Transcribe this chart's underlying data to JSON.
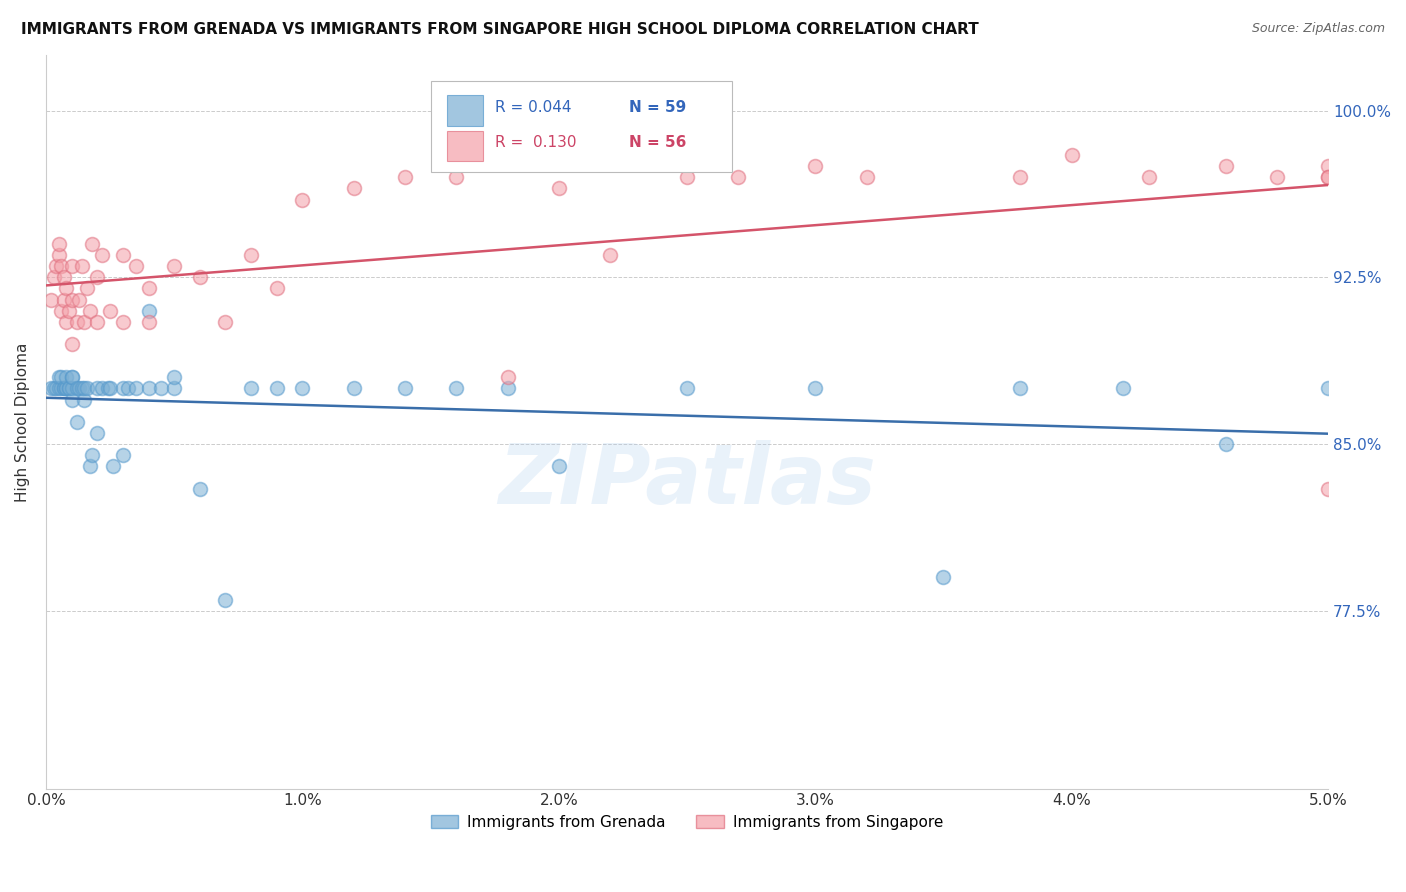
{
  "title": "IMMIGRANTS FROM GRENADA VS IMMIGRANTS FROM SINGAPORE HIGH SCHOOL DIPLOMA CORRELATION CHART",
  "source": "Source: ZipAtlas.com",
  "ylabel": "High School Diploma",
  "ytick_labels": [
    "100.0%",
    "92.5%",
    "85.0%",
    "77.5%"
  ],
  "ytick_values": [
    1.0,
    0.925,
    0.85,
    0.775
  ],
  "xlim": [
    0.0,
    0.05
  ],
  "ylim": [
    0.695,
    1.025
  ],
  "legend_blue_R": "R = 0.044",
  "legend_blue_N": "N = 59",
  "legend_pink_R": "R =  0.130",
  "legend_pink_N": "N = 56",
  "blue_color": "#7BAFD4",
  "pink_color": "#F4A0A8",
  "blue_line_color": "#3A6EAA",
  "pink_line_color": "#D4546A",
  "blue_edge_color": "#5599CC",
  "pink_edge_color": "#E07080",
  "watermark": "ZIPatlas",
  "blue_points_x": [
    0.0002,
    0.0003,
    0.0004,
    0.0005,
    0.0005,
    0.0006,
    0.0006,
    0.0007,
    0.0007,
    0.0008,
    0.0008,
    0.0008,
    0.0009,
    0.0009,
    0.001,
    0.001,
    0.001,
    0.001,
    0.0012,
    0.0012,
    0.0013,
    0.0014,
    0.0015,
    0.0015,
    0.0016,
    0.0017,
    0.0018,
    0.002,
    0.002,
    0.0022,
    0.0024,
    0.0025,
    0.0026,
    0.003,
    0.003,
    0.0032,
    0.0035,
    0.004,
    0.004,
    0.0045,
    0.005,
    0.005,
    0.006,
    0.007,
    0.008,
    0.009,
    0.01,
    0.012,
    0.014,
    0.016,
    0.018,
    0.02,
    0.025,
    0.03,
    0.035,
    0.038,
    0.042,
    0.046,
    0.05
  ],
  "blue_points_y": [
    0.875,
    0.875,
    0.875,
    0.875,
    0.88,
    0.875,
    0.88,
    0.875,
    0.875,
    0.875,
    0.875,
    0.88,
    0.875,
    0.875,
    0.87,
    0.875,
    0.88,
    0.88,
    0.86,
    0.875,
    0.875,
    0.875,
    0.87,
    0.875,
    0.875,
    0.84,
    0.845,
    0.855,
    0.875,
    0.875,
    0.875,
    0.875,
    0.84,
    0.845,
    0.875,
    0.875,
    0.875,
    0.91,
    0.875,
    0.875,
    0.875,
    0.88,
    0.83,
    0.78,
    0.875,
    0.875,
    0.875,
    0.875,
    0.875,
    0.875,
    0.875,
    0.84,
    0.875,
    0.875,
    0.79,
    0.875,
    0.875,
    0.85,
    0.875
  ],
  "pink_points_x": [
    0.0002,
    0.0003,
    0.0004,
    0.0005,
    0.0005,
    0.0006,
    0.0006,
    0.0007,
    0.0007,
    0.0008,
    0.0008,
    0.0009,
    0.001,
    0.001,
    0.001,
    0.0012,
    0.0013,
    0.0014,
    0.0015,
    0.0016,
    0.0017,
    0.0018,
    0.002,
    0.002,
    0.0022,
    0.0025,
    0.003,
    0.003,
    0.0035,
    0.004,
    0.004,
    0.005,
    0.006,
    0.007,
    0.008,
    0.009,
    0.01,
    0.012,
    0.014,
    0.016,
    0.018,
    0.02,
    0.022,
    0.025,
    0.027,
    0.03,
    0.032,
    0.038,
    0.04,
    0.043,
    0.046,
    0.048,
    0.05,
    0.05,
    0.05,
    0.05
  ],
  "pink_points_y": [
    0.915,
    0.925,
    0.93,
    0.935,
    0.94,
    0.91,
    0.93,
    0.915,
    0.925,
    0.905,
    0.92,
    0.91,
    0.895,
    0.915,
    0.93,
    0.905,
    0.915,
    0.93,
    0.905,
    0.92,
    0.91,
    0.94,
    0.905,
    0.925,
    0.935,
    0.91,
    0.905,
    0.935,
    0.93,
    0.905,
    0.92,
    0.93,
    0.925,
    0.905,
    0.935,
    0.92,
    0.96,
    0.965,
    0.97,
    0.97,
    0.88,
    0.965,
    0.935,
    0.97,
    0.97,
    0.975,
    0.97,
    0.97,
    0.98,
    0.97,
    0.975,
    0.97,
    0.975,
    0.97,
    0.97,
    0.83
  ]
}
